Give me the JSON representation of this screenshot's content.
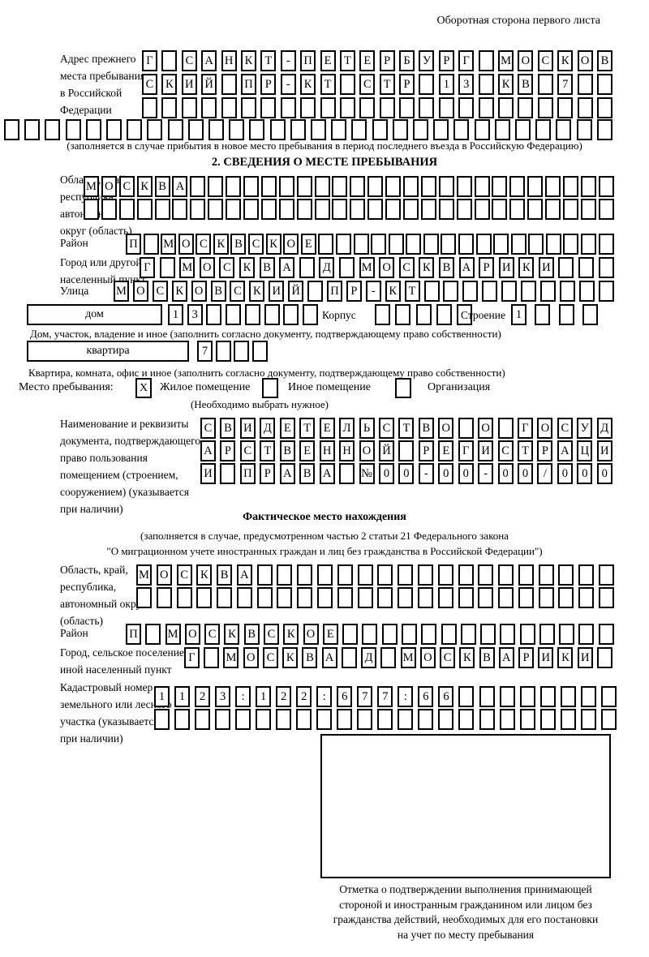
{
  "page": {
    "header_note": "Оборотная сторона первого листа"
  },
  "prev_address": {
    "label": [
      "Адрес прежнего",
      "места пребывания",
      "в Российской",
      "Федерации"
    ],
    "rows": {
      "r1": {
        "text": "Г САНКТ-ПЕТЕРБУРГ МОСКОВ",
        "n": 24
      },
      "r2": {
        "text": "СКИЙ ПР-КТ СТР 13 КВ 7",
        "n": 24
      },
      "r3": {
        "text": "",
        "n": 24
      },
      "r4": {
        "text": "",
        "n": 30
      }
    },
    "note": "(заполняется в случае прибытия в новое место пребывания в период последнего въезда в Российскую Федерацию)"
  },
  "section2": {
    "title": "2. СВЕДЕНИЯ О МЕСТЕ ПРЕБЫВАНИЯ",
    "oblast_label": [
      "Область, край,",
      "республика,",
      "автономный",
      "округ (область)"
    ],
    "oblast_r1": {
      "text": "МОСКВА",
      "n": 30
    },
    "oblast_r2": {
      "text": "",
      "n": 30
    },
    "raion_label": "Район",
    "raion": {
      "text": "П МОСКВСКОЕ",
      "n": 28
    },
    "gorod_label": [
      "Город или другой",
      "населенный пункт"
    ],
    "gorod": {
      "text": "Г МОСКВА Д МОСКВАРИКИ",
      "n": 24
    },
    "ulitsa_label": "Улица",
    "ulitsa": {
      "text": "МОСКОВСКИЙ ПР-КТ",
      "n": 26
    },
    "dom_box_label": "дом",
    "dom": {
      "text": "13",
      "n": 8
    },
    "korpus_label": "Корпус",
    "korpus": {
      "text": "",
      "n": 5
    },
    "stroenie_label": "Строение",
    "stroenie": {
      "text": "1",
      "n": 4
    },
    "dom_note": "Дом, участок, владение и иное (заполнить согласно документу, подтверждающему право собственности)",
    "kvartira_box_label": "квартира",
    "kvartira": {
      "text": "7",
      "n": 4
    },
    "kvartira_note": "Квартира, комната, офис и иное (заполнить согласно документу, подтверждающему право собственности)",
    "mesto_label": "Место пребывания:",
    "mesto_options": [
      {
        "mark": "X",
        "label": "Жилое помещение"
      },
      {
        "mark": "",
        "label": "Иное помещение"
      },
      {
        "mark": "",
        "label": "Организация"
      }
    ],
    "mesto_note": "(Необходимо выбрать нужное)",
    "doc_label": [
      "Наименование и реквизиты",
      "документа, подтверждающего",
      "право пользования",
      "помещением (строением,",
      "сооружением) (указывается",
      "при наличии)"
    ],
    "doc_r1": {
      "text": "СВИДЕТЕЛЬСТВО О ГОСУД",
      "n": 21
    },
    "doc_r2": {
      "text": "АРСТВЕННОЙ РЕГИСТРАЦИ",
      "n": 21
    },
    "doc_r3": {
      "text": "И ПРАВА №00-00-00/000",
      "n": 21
    }
  },
  "fakt": {
    "title": "Фактическое место нахождения",
    "note1": "(заполняется в случае, предусмотренном частью 2 статьи 21 Федерального закона",
    "note2": "\"О миграционном учете иностранных граждан и лиц без гражданства в Российской Федерации\")",
    "oblast_label": [
      "Область, край,",
      "республика,",
      "автономный округ",
      "(область)"
    ],
    "oblast_r1": {
      "text": "МОСКВА",
      "n": 24
    },
    "oblast_r2": {
      "text": "",
      "n": 24
    },
    "raion_label": "Район",
    "raion": {
      "text": "П МОСКВСКОЕ",
      "n": 25
    },
    "gorod_label": [
      "Город, сельское поселение,",
      "иной населенный пункт"
    ],
    "gorod": {
      "text": "Г МОСКВА Д МОСКВАРИКИ",
      "n": 22
    },
    "kadastr_label": [
      "Кадастровый номер",
      "земельного или лесного",
      "участка (указывается",
      "при наличии)"
    ],
    "kadastr_r1": {
      "text": "1123:122:677:66",
      "n": 23
    },
    "kadastr_r2": {
      "text": "",
      "n": 23
    },
    "stamp_caption": [
      "Отметка о подтверждении выполнения принимающей",
      "стороной и иностранным гражданином или лицом без",
      "гражданства действий, необходимых для его постановки",
      "на учет по месту пребывания"
    ]
  }
}
